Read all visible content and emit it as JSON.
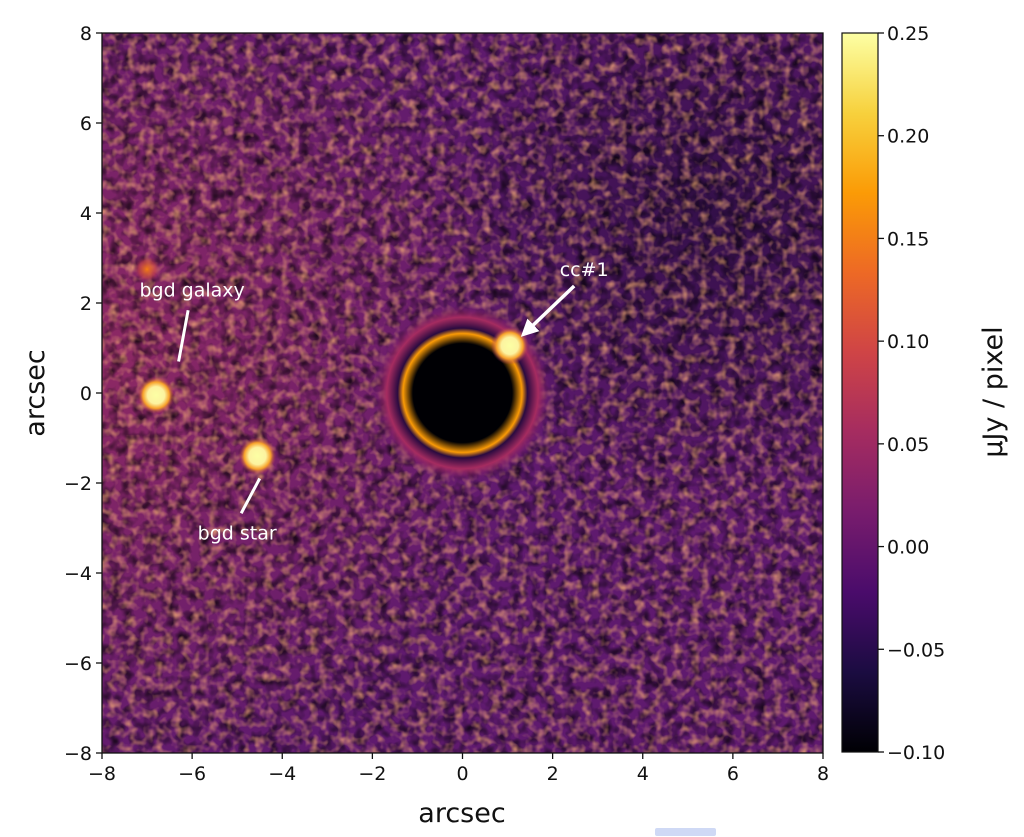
{
  "chart_data": {
    "type": "heatmap",
    "xlabel": "arcsec",
    "ylabel": "arcsec",
    "xlim": [
      -8,
      8
    ],
    "ylim": [
      -8,
      8
    ],
    "x_ticks": [
      -8,
      -6,
      -4,
      -2,
      0,
      2,
      4,
      6,
      8
    ],
    "y_ticks": [
      -8,
      -6,
      -4,
      -2,
      0,
      2,
      4,
      6,
      8
    ],
    "x_tick_labels": [
      "−8",
      "−6",
      "−4",
      "−2",
      "0",
      "2",
      "4",
      "6",
      "8"
    ],
    "y_tick_labels": [
      "−8",
      "−6",
      "−4",
      "−2",
      "0",
      "2",
      "4",
      "6",
      "8"
    ],
    "grid": false,
    "colormap": "inferno",
    "colorbar": {
      "label": "μJy / pixel",
      "range": [
        -0.1,
        0.25
      ],
      "ticks": [
        -0.1,
        -0.05,
        0.0,
        0.05,
        0.1,
        0.15,
        0.2,
        0.25
      ],
      "tick_labels": [
        "−0.10",
        "−0.05",
        "0.00",
        "0.05",
        "0.10",
        "0.15",
        "0.20",
        "0.25"
      ],
      "colors": [
        "#000004",
        "#1b0c41",
        "#4a0c6b",
        "#781c6d",
        "#a52c60",
        "#cf4446",
        "#ed6925",
        "#fb9b06",
        "#f7d13d",
        "#fcffa4"
      ]
    },
    "background_level": 0.02,
    "sources": [
      {
        "x": 1.05,
        "y": 1.05,
        "peak": 0.25
      },
      {
        "x": -6.8,
        "y": -0.05,
        "peak": 0.25
      },
      {
        "x": -4.55,
        "y": -1.4,
        "peak": 0.25
      },
      {
        "x": -7.0,
        "y": 2.75,
        "peak": 0.1
      }
    ],
    "annotations": [
      {
        "text": "cc#1",
        "x": 2.7,
        "y": 2.6,
        "arrow_to": [
          1.35,
          1.3
        ]
      },
      {
        "text": "bgd galaxy",
        "x": -6.0,
        "y": 2.15,
        "line_to": [
          -6.3,
          0.7
        ]
      },
      {
        "text": "bgd star",
        "x": -5.0,
        "y": -3.25,
        "line_to": [
          -4.5,
          -1.9
        ]
      }
    ]
  }
}
